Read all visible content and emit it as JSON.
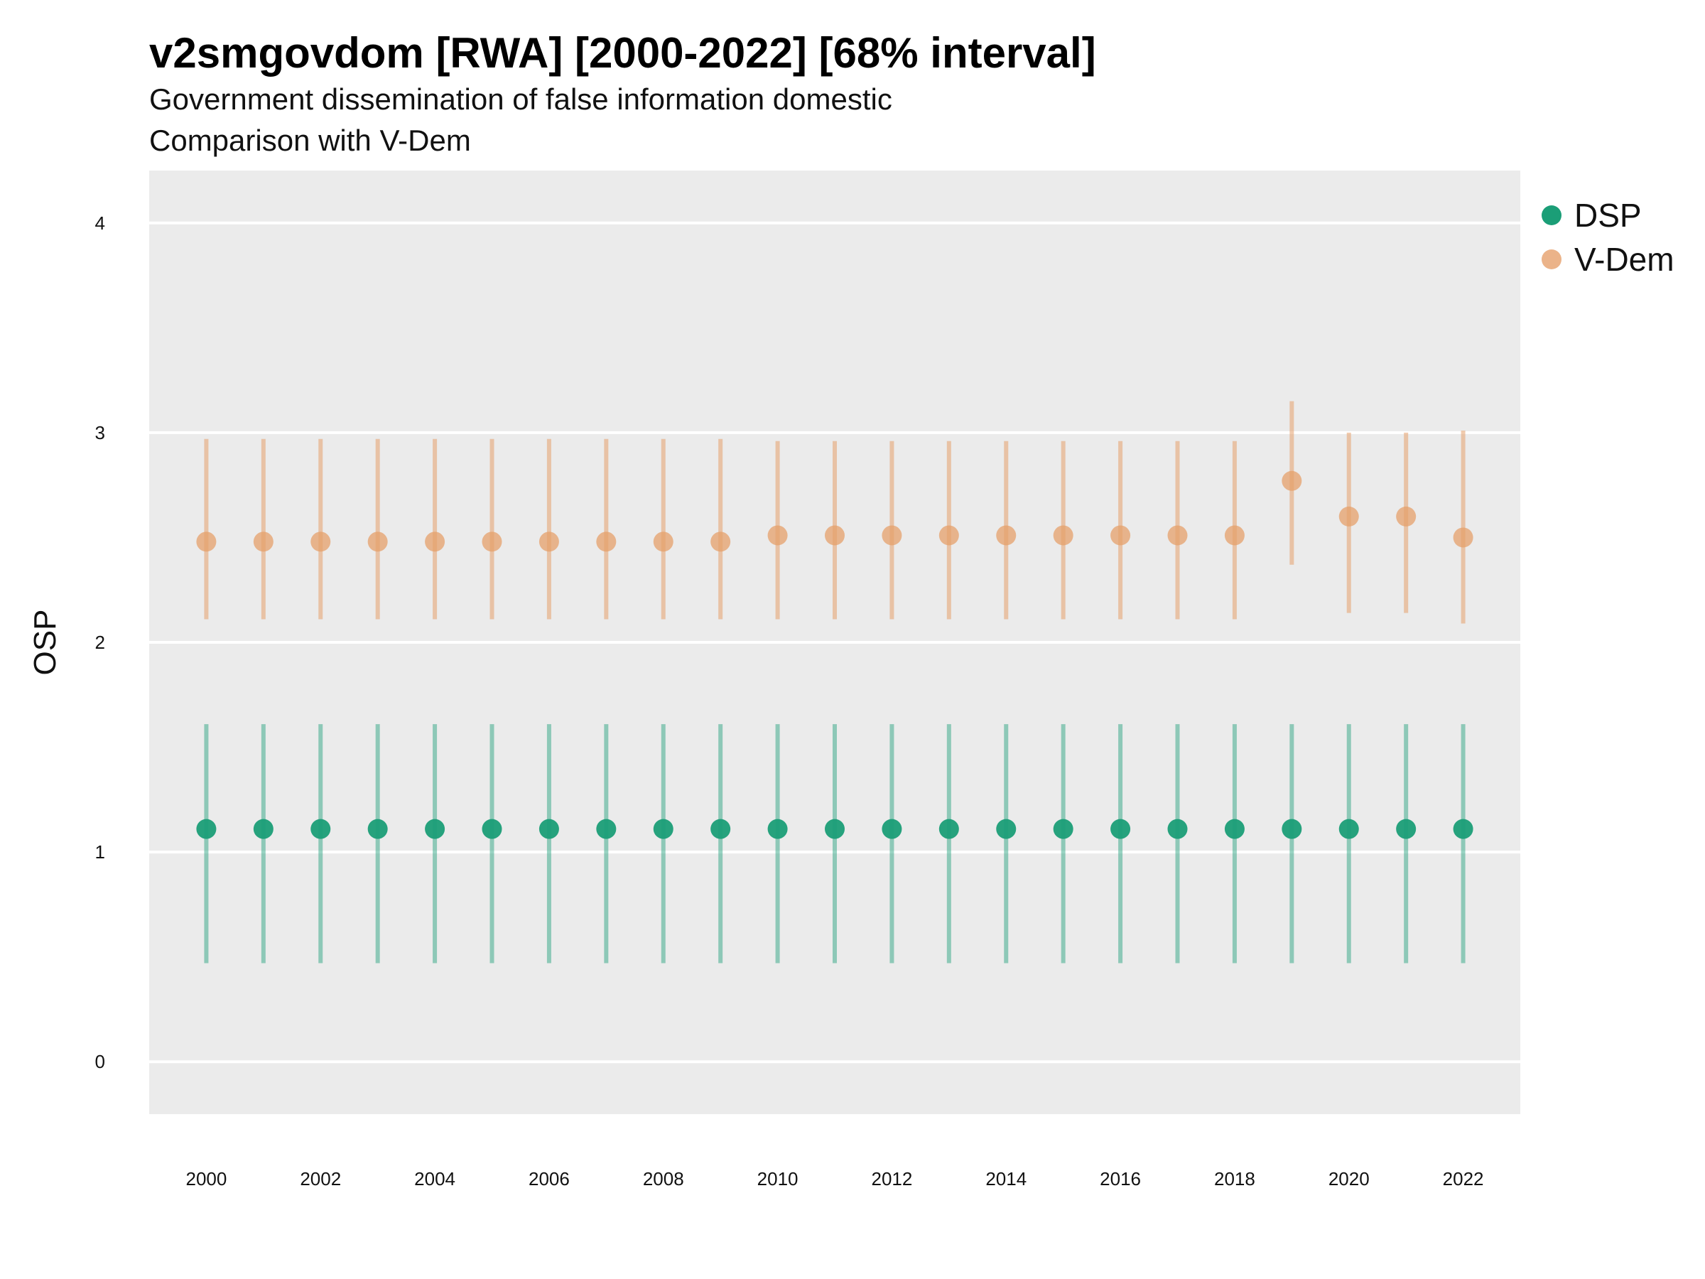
{
  "title": "v2smgovdom [RWA] [2000-2022] [68% interval]",
  "subtitle": "Government dissemination of false information domestic",
  "subtitle2": "Comparison with V-Dem",
  "colors": {
    "panel": "#ebebeb",
    "grid": "#ffffff",
    "dsp": "#1b9e77",
    "vdem": "#e6a06b"
  },
  "chart_data": {
    "type": "scatter",
    "title": "v2smgovdom [RWA] [2000-2022] [68% interval]",
    "subtitle": "Government dissemination of false information domestic",
    "xlabel": "",
    "ylabel": "OSP",
    "ylim": [
      -0.25,
      4.25
    ],
    "xlim": [
      1999,
      2023
    ],
    "y_ticks": [
      0,
      1,
      2,
      3,
      4
    ],
    "x_ticks": [
      2000,
      2002,
      2004,
      2006,
      2008,
      2010,
      2012,
      2014,
      2016,
      2018,
      2020,
      2022
    ],
    "grid": "on",
    "legend": {
      "placement": "right",
      "entries": [
        "DSP",
        "V-Dem"
      ]
    },
    "x": [
      2000,
      2001,
      2002,
      2003,
      2004,
      2005,
      2006,
      2007,
      2008,
      2009,
      2010,
      2011,
      2012,
      2013,
      2014,
      2015,
      2016,
      2017,
      2018,
      2019,
      2020,
      2021,
      2022
    ],
    "series": [
      {
        "name": "DSP",
        "color": "#1b9e77",
        "values": [
          1.11,
          1.11,
          1.11,
          1.11,
          1.11,
          1.11,
          1.11,
          1.11,
          1.11,
          1.11,
          1.11,
          1.11,
          1.11,
          1.11,
          1.11,
          1.11,
          1.11,
          1.11,
          1.11,
          1.11,
          1.11,
          1.11,
          1.11
        ],
        "lower": [
          0.47,
          0.47,
          0.47,
          0.47,
          0.47,
          0.47,
          0.47,
          0.47,
          0.47,
          0.47,
          0.47,
          0.47,
          0.47,
          0.47,
          0.47,
          0.47,
          0.47,
          0.47,
          0.47,
          0.47,
          0.47,
          0.47,
          0.47
        ],
        "upper": [
          1.61,
          1.61,
          1.61,
          1.61,
          1.61,
          1.61,
          1.61,
          1.61,
          1.61,
          1.61,
          1.61,
          1.61,
          1.61,
          1.61,
          1.61,
          1.61,
          1.61,
          1.61,
          1.61,
          1.61,
          1.61,
          1.61,
          1.61
        ]
      },
      {
        "name": "V-Dem",
        "color": "#e6a06b",
        "values": [
          2.48,
          2.48,
          2.48,
          2.48,
          2.48,
          2.48,
          2.48,
          2.48,
          2.48,
          2.48,
          2.51,
          2.51,
          2.51,
          2.51,
          2.51,
          2.51,
          2.51,
          2.51,
          2.51,
          2.77,
          2.6,
          2.6,
          2.5
        ],
        "lower": [
          2.11,
          2.11,
          2.11,
          2.11,
          2.11,
          2.11,
          2.11,
          2.11,
          2.11,
          2.11,
          2.11,
          2.11,
          2.11,
          2.11,
          2.11,
          2.11,
          2.11,
          2.11,
          2.11,
          2.37,
          2.14,
          2.14,
          2.09
        ],
        "upper": [
          2.97,
          2.97,
          2.97,
          2.97,
          2.97,
          2.97,
          2.97,
          2.97,
          2.97,
          2.97,
          2.96,
          2.96,
          2.96,
          2.96,
          2.96,
          2.96,
          2.96,
          2.96,
          2.96,
          3.15,
          3.0,
          3.0,
          3.01
        ]
      }
    ]
  }
}
